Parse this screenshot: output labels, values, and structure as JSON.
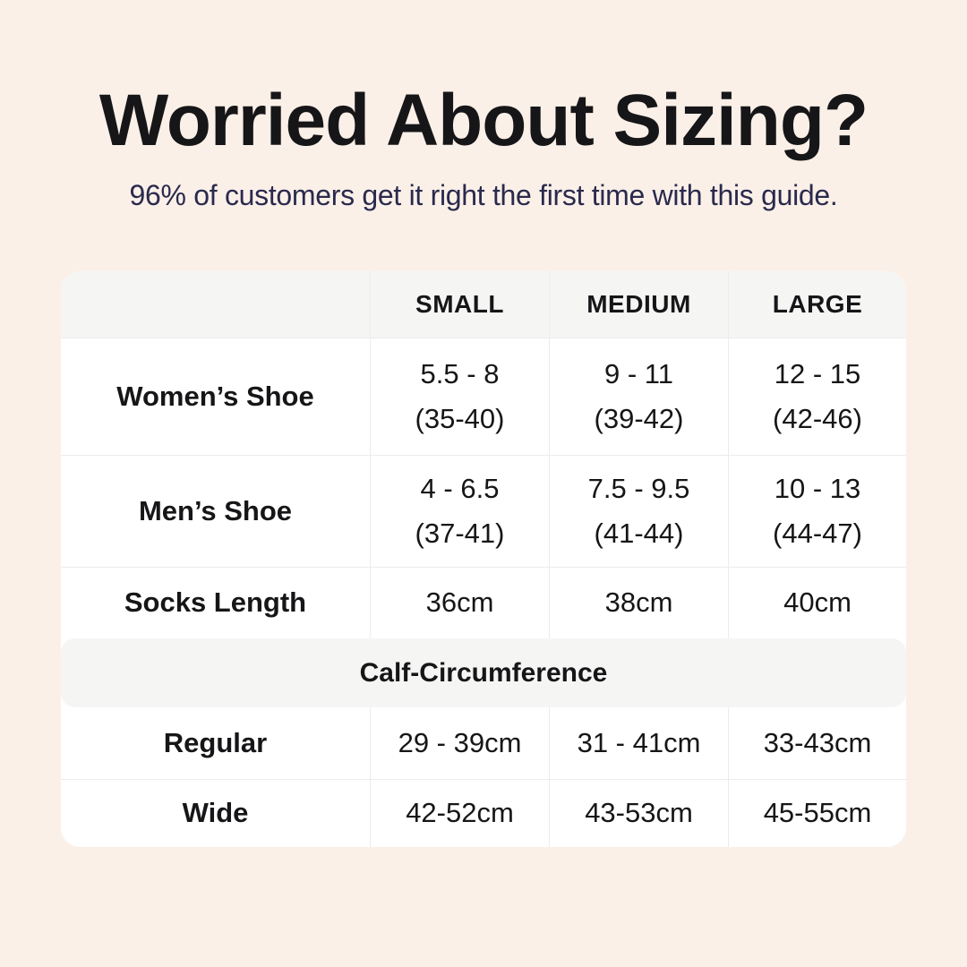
{
  "page": {
    "background_color": "#FBF0E8",
    "title": "Worried About Sizing?",
    "subtitle": "96% of customers get it right the first time with this guide.",
    "title_color": "#161618",
    "subtitle_color": "#2A2A4D"
  },
  "table": {
    "background_color": "#FFFFFF",
    "header_background": "#F5F5F4",
    "divider_color": "#ECECEC",
    "columns": [
      "",
      "SMALL",
      "MEDIUM",
      "LARGE"
    ],
    "rows": [
      {
        "label": "Women’s Shoe",
        "cells": [
          [
            "5.5 - 8",
            "(35-40)"
          ],
          [
            "9 - 11",
            "(39-42)"
          ],
          [
            "12 - 15",
            "(42-46)"
          ]
        ]
      },
      {
        "label": "Men’s Shoe",
        "cells": [
          [
            "4 - 6.5",
            "(37-41)"
          ],
          [
            "7.5 - 9.5",
            "(41-44)"
          ],
          [
            "10 - 13",
            "(44-47)"
          ]
        ]
      },
      {
        "label": "Socks Length",
        "cells": [
          [
            "36cm"
          ],
          [
            "38cm"
          ],
          [
            "40cm"
          ]
        ]
      }
    ],
    "section_header": "Calf-Circumference",
    "section_rows": [
      {
        "label": "Regular",
        "cells": [
          [
            "29 - 39cm"
          ],
          [
            "31 - 41cm"
          ],
          [
            "33-43cm"
          ]
        ]
      },
      {
        "label": "Wide",
        "cells": [
          [
            "42-52cm"
          ],
          [
            "43-53cm"
          ],
          [
            "45-55cm"
          ]
        ]
      }
    ]
  },
  "chart_data": {
    "type": "table",
    "title": "Worried About Sizing?",
    "subtitle": "96% of customers get it right the first time with this guide.",
    "columns": [
      "",
      "SMALL",
      "MEDIUM",
      "LARGE"
    ],
    "rows": [
      [
        "Women’s Shoe",
        "5.5 - 8 (35-40)",
        "9 - 11 (39-42)",
        "12 - 15 (42-46)"
      ],
      [
        "Men’s Shoe",
        "4 - 6.5 (37-41)",
        "7.5 - 9.5 (41-44)",
        "10 - 13 (44-47)"
      ],
      [
        "Socks Length",
        "36cm",
        "38cm",
        "40cm"
      ],
      [
        "Calf-Circumference (section header spanning all columns)",
        "",
        "",
        ""
      ],
      [
        "Regular",
        "29 - 39cm",
        "31 - 41cm",
        "33-43cm"
      ],
      [
        "Wide",
        "42-52cm",
        "43-53cm",
        "45-55cm"
      ]
    ],
    "layout": {
      "grid": "off",
      "section_band_row_index": 3,
      "first_column_is_row_labels": true
    }
  }
}
